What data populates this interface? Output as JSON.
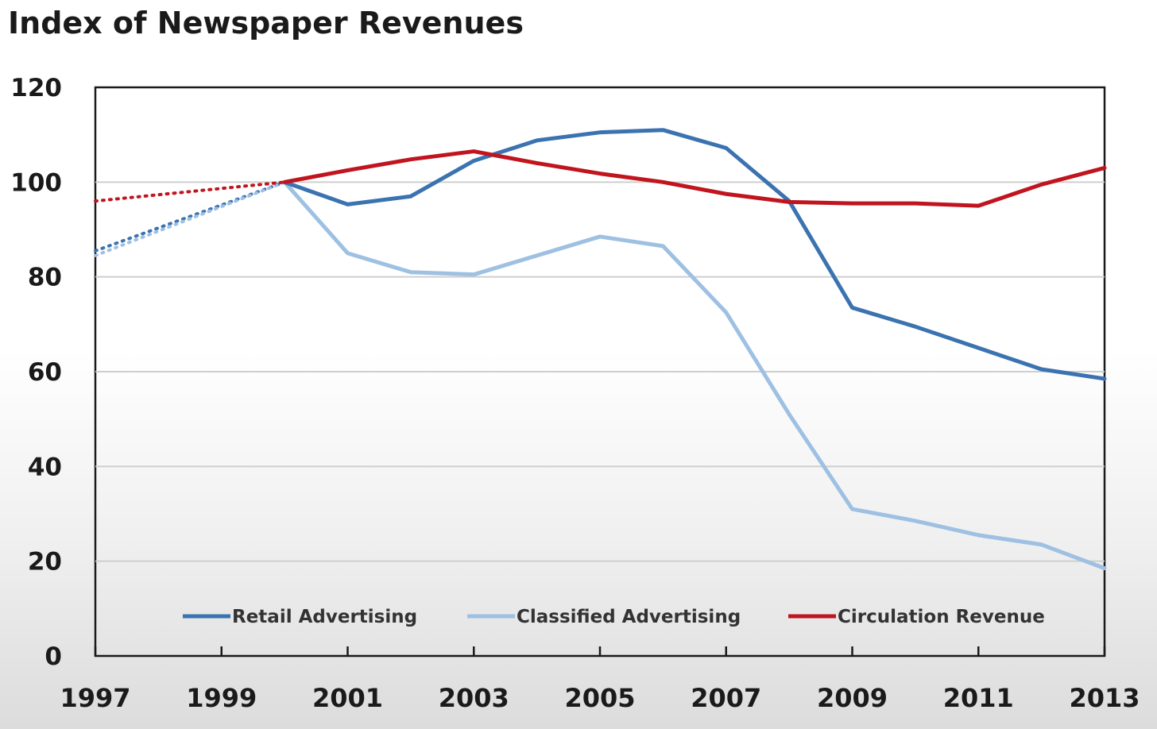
{
  "chart_data": {
    "type": "line",
    "title": "Index of Newspaper Revenues",
    "xlabel": "",
    "ylabel": "",
    "xlim": [
      1997,
      2013
    ],
    "ylim": [
      0,
      120
    ],
    "x_ticks": [
      1997,
      1999,
      2001,
      2003,
      2005,
      2007,
      2009,
      2011,
      2013
    ],
    "y_ticks": [
      0,
      20,
      40,
      60,
      80,
      100,
      120
    ],
    "grid": "horizontal",
    "legend_position": "bottom",
    "series": [
      {
        "name": "Retail Advertising",
        "color": "#3b73b0",
        "x": [
          2000,
          2001,
          2002,
          2003,
          2004,
          2005,
          2006,
          2007,
          2008,
          2009,
          2010,
          2011,
          2012,
          2013
        ],
        "values": [
          100,
          95.3,
          97,
          104.5,
          108.8,
          110.5,
          111,
          107.2,
          96,
          73.5,
          69.5,
          65,
          60.5,
          58.5
        ],
        "projection": {
          "x": [
            1997,
            2000
          ],
          "values": [
            85.5,
            100
          ],
          "style": "dotted"
        }
      },
      {
        "name": "Classified Advertising",
        "color": "#9ec0e2",
        "x": [
          2000,
          2001,
          2002,
          2003,
          2004,
          2005,
          2006,
          2007,
          2008,
          2009,
          2010,
          2011,
          2012,
          2013
        ],
        "values": [
          100,
          85,
          81,
          80.5,
          84.5,
          88.5,
          86.5,
          72.5,
          51,
          31,
          28.5,
          25.5,
          23.5,
          18.5
        ],
        "projection": {
          "x": [
            1997,
            2000
          ],
          "values": [
            84.5,
            100
          ],
          "style": "dotted"
        }
      },
      {
        "name": "Circulation Revenue",
        "color": "#c0151e",
        "x": [
          2000,
          2001,
          2002,
          2003,
          2004,
          2005,
          2006,
          2007,
          2008,
          2009,
          2010,
          2011,
          2012,
          2013
        ],
        "values": [
          100,
          102.5,
          104.8,
          106.5,
          104,
          101.8,
          100,
          97.5,
          95.8,
          95.5,
          95.5,
          95,
          99.5,
          103
        ],
        "projection": {
          "x": [
            1997,
            2000
          ],
          "values": [
            96,
            100
          ],
          "style": "dotted"
        }
      }
    ]
  }
}
